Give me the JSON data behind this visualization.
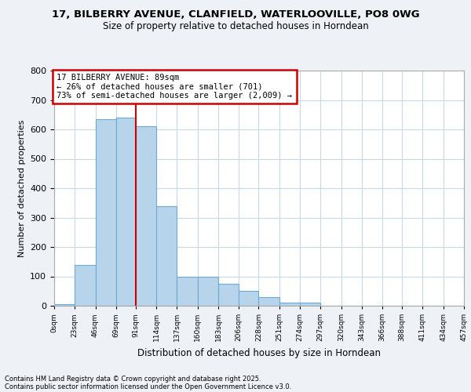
{
  "title_line1": "17, BILBERRY AVENUE, CLANFIELD, WATERLOOVILLE, PO8 0WG",
  "title_line2": "Size of property relative to detached houses in Horndean",
  "xlabel": "Distribution of detached houses by size in Horndean",
  "ylabel": "Number of detached properties",
  "bin_edges": [
    0,
    23,
    46,
    69,
    91,
    114,
    137,
    160,
    183,
    206,
    228,
    251,
    274,
    297,
    320,
    343,
    366,
    388,
    411,
    434,
    457
  ],
  "bar_heights": [
    5,
    140,
    635,
    640,
    610,
    340,
    100,
    100,
    75,
    50,
    30,
    10,
    10,
    0,
    0,
    0,
    0,
    0,
    0,
    0
  ],
  "bar_color": "#b8d4ea",
  "bar_edge_color": "#6aaad4",
  "x_tick_labels": [
    "0sqm",
    "23sqm",
    "46sqm",
    "69sqm",
    "91sqm",
    "114sqm",
    "137sqm",
    "160sqm",
    "183sqm",
    "206sqm",
    "228sqm",
    "251sqm",
    "274sqm",
    "297sqm",
    "320sqm",
    "343sqm",
    "366sqm",
    "388sqm",
    "411sqm",
    "434sqm",
    "457sqm"
  ],
  "ylim": [
    0,
    800
  ],
  "xlim": [
    0,
    457
  ],
  "y_ticks": [
    0,
    100,
    200,
    300,
    400,
    500,
    600,
    700,
    800
  ],
  "property_line_x": 91,
  "annotation_title": "17 BILBERRY AVENUE: 89sqm",
  "annotation_line1": "← 26% of detached houses are smaller (701)",
  "annotation_line2": "73% of semi-detached houses are larger (2,009) →",
  "annotation_box_color": "#ffffff",
  "annotation_box_edge": "#cc0000",
  "property_line_color": "#cc0000",
  "footnote1": "Contains HM Land Registry data © Crown copyright and database right 2025.",
  "footnote2": "Contains public sector information licensed under the Open Government Licence v3.0.",
  "background_color": "#eef2f7",
  "plot_bg_color": "#ffffff",
  "grid_color": "#c8d8e8"
}
